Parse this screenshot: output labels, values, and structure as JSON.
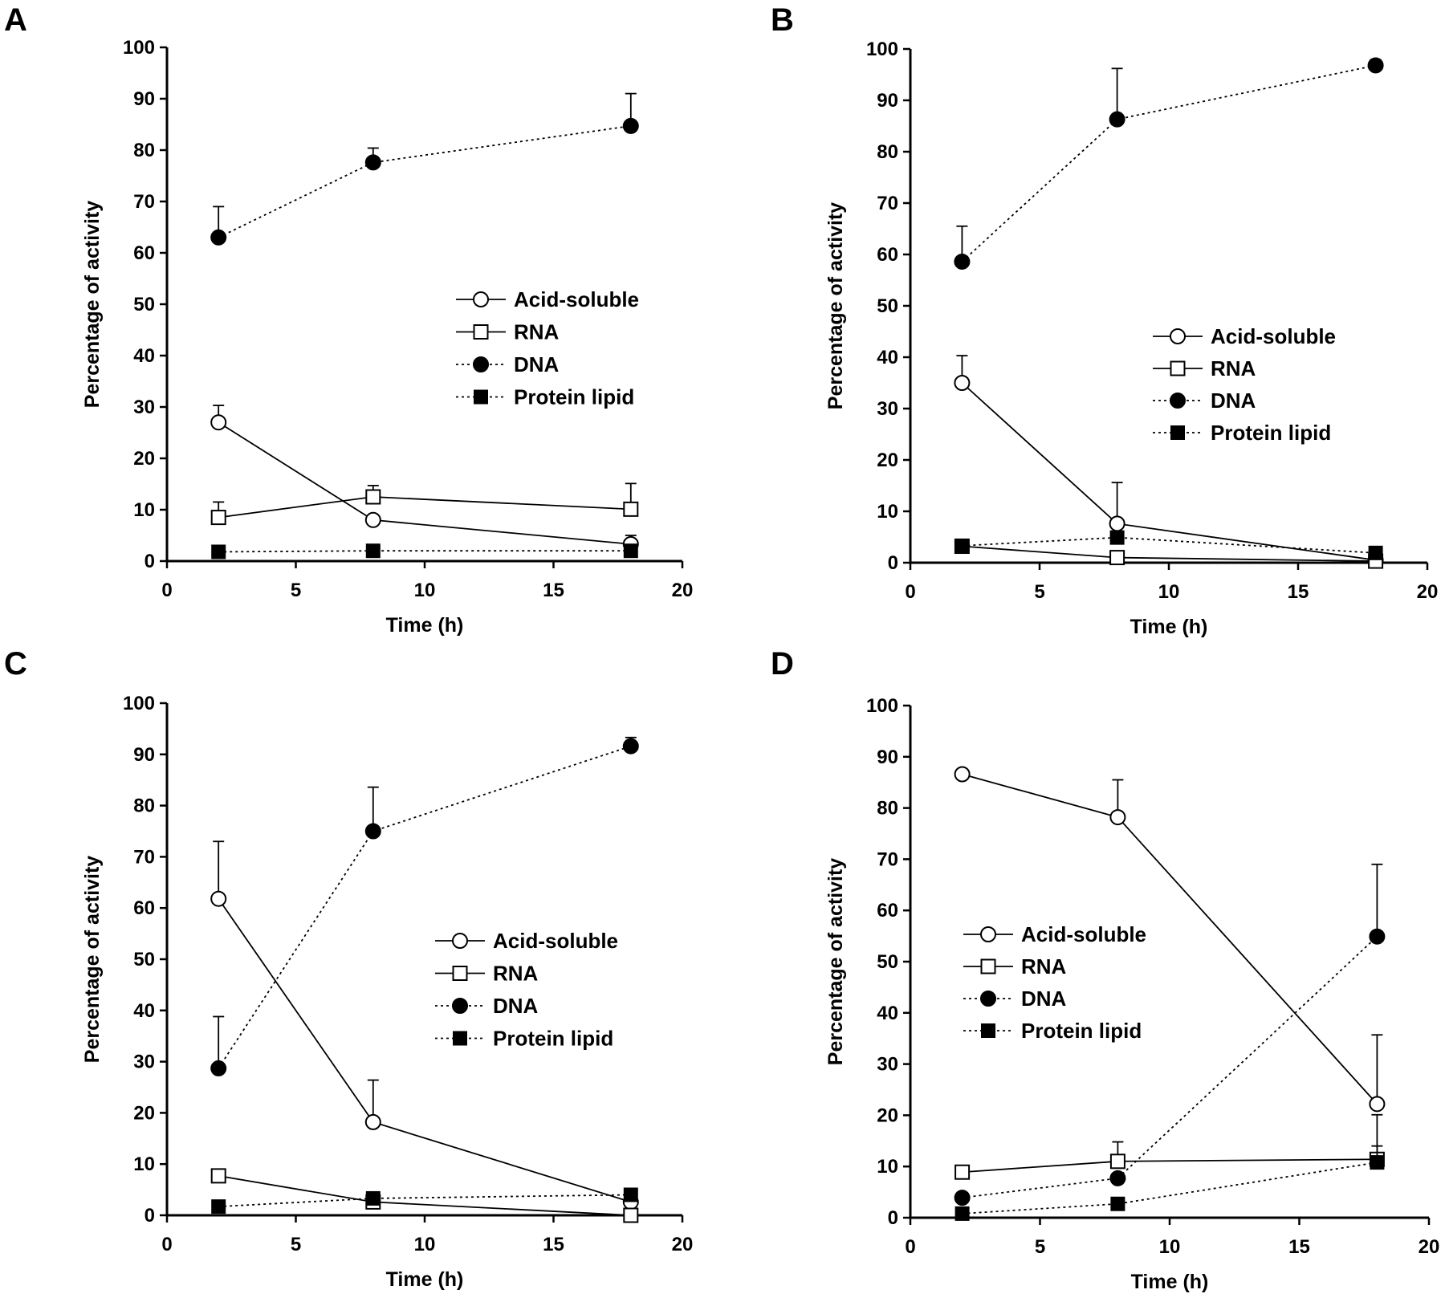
{
  "chart_data": [
    {
      "panel": "A",
      "type": "line",
      "xlabel": "Time (h)",
      "ylabel": "Percentage of activity",
      "xlim": [
        0,
        20
      ],
      "ylim": [
        0,
        100
      ],
      "xticks": [
        0,
        5,
        10,
        15,
        20
      ],
      "yticks": [
        0,
        10,
        20,
        30,
        40,
        50,
        60,
        70,
        80,
        90,
        100
      ],
      "x": [
        2,
        8,
        18
      ],
      "legend_position": "center-right",
      "series": [
        {
          "name": "Acid-soluble",
          "marker": "open-circle",
          "line": "solid",
          "values": [
            27,
            8,
            3.3
          ],
          "error": [
            3.3,
            0,
            1.7
          ]
        },
        {
          "name": "RNA",
          "marker": "open-square",
          "line": "solid",
          "values": [
            8.5,
            12.5,
            10.1
          ],
          "error": [
            3,
            2.2,
            5
          ]
        },
        {
          "name": "DNA",
          "marker": "filled-circle",
          "line": "dotted",
          "values": [
            63,
            77.6,
            84.7
          ],
          "error": [
            6,
            2.8,
            6.3
          ]
        },
        {
          "name": "Protein lipid",
          "marker": "filled-square",
          "line": "dotted",
          "values": [
            1.8,
            2,
            2
          ],
          "error": [
            0,
            0,
            0
          ]
        }
      ]
    },
    {
      "panel": "B",
      "type": "line",
      "xlabel": "Time (h)",
      "ylabel": "Percentage of activity",
      "xlim": [
        0,
        20
      ],
      "ylim": [
        0,
        100
      ],
      "xticks": [
        0,
        5,
        10,
        15,
        20
      ],
      "yticks": [
        0,
        10,
        20,
        30,
        40,
        50,
        60,
        70,
        80,
        90,
        100
      ],
      "x": [
        2,
        8,
        18
      ],
      "legend_position": "center-right",
      "series": [
        {
          "name": "Acid-soluble",
          "marker": "open-circle",
          "line": "solid",
          "values": [
            35,
            7.6,
            0.5
          ],
          "error": [
            5.3,
            8,
            0
          ]
        },
        {
          "name": "RNA",
          "marker": "open-square",
          "line": "solid",
          "values": [
            3.2,
            1,
            0.3
          ],
          "error": [
            0,
            0,
            0
          ]
        },
        {
          "name": "DNA",
          "marker": "filled-circle",
          "line": "dotted",
          "values": [
            58.6,
            86.3,
            96.8
          ],
          "error": [
            6.9,
            9.9,
            1.1
          ]
        },
        {
          "name": "Protein lipid",
          "marker": "filled-square",
          "line": "dotted",
          "values": [
            3.3,
            4.9,
            1.9
          ],
          "error": [
            0,
            0,
            0
          ]
        }
      ]
    },
    {
      "panel": "C",
      "type": "line",
      "xlabel": "Time (h)",
      "ylabel": "Percentage of activity",
      "xlim": [
        0,
        20
      ],
      "ylim": [
        0,
        100
      ],
      "xticks": [
        0,
        5,
        10,
        15,
        20
      ],
      "yticks": [
        0,
        10,
        20,
        30,
        40,
        50,
        60,
        70,
        80,
        90,
        100
      ],
      "x": [
        2,
        8,
        18
      ],
      "legend_position": "center-right",
      "series": [
        {
          "name": "Acid-soluble",
          "marker": "open-circle",
          "line": "solid",
          "values": [
            61.8,
            18.2,
            2.6
          ],
          "error": [
            11.2,
            8.2,
            0
          ]
        },
        {
          "name": "RNA",
          "marker": "open-square",
          "line": "solid",
          "values": [
            7.7,
            2.6,
            0
          ],
          "error": [
            0,
            0,
            0
          ]
        },
        {
          "name": "DNA",
          "marker": "filled-circle",
          "line": "dotted",
          "values": [
            28.7,
            75,
            91.6
          ],
          "error": [
            10.1,
            8.6,
            1.7
          ]
        },
        {
          "name": "Protein lipid",
          "marker": "filled-square",
          "line": "dotted",
          "values": [
            1.7,
            3.3,
            4
          ],
          "error": [
            0,
            0,
            0
          ]
        }
      ]
    },
    {
      "panel": "D",
      "type": "line",
      "xlabel": "Time (h)",
      "ylabel": "Percentage of activity",
      "xlim": [
        0,
        20
      ],
      "ylim": [
        0,
        100
      ],
      "xticks": [
        0,
        5,
        10,
        15,
        20
      ],
      "yticks": [
        0,
        10,
        20,
        30,
        40,
        50,
        60,
        70,
        80,
        90,
        100
      ],
      "x": [
        2,
        8,
        18
      ],
      "legend_position": "center-left",
      "series": [
        {
          "name": "Acid-soluble",
          "marker": "open-circle",
          "line": "solid",
          "values": [
            86.6,
            78.2,
            22.2
          ],
          "error": [
            0.8,
            7.3,
            13.5
          ]
        },
        {
          "name": "RNA",
          "marker": "open-square",
          "line": "solid",
          "values": [
            8.9,
            11,
            11.4
          ],
          "error": [
            0,
            3.8,
            2.6
          ]
        },
        {
          "name": "DNA",
          "marker": "filled-circle",
          "line": "dotted",
          "values": [
            3.9,
            7.7,
            54.9
          ],
          "error": [
            0,
            0,
            14.1
          ]
        },
        {
          "name": "Protein lipid",
          "marker": "filled-square",
          "line": "dotted",
          "values": [
            0.8,
            2.7,
            10.8
          ],
          "error": [
            0,
            0,
            9.3
          ]
        }
      ]
    }
  ]
}
